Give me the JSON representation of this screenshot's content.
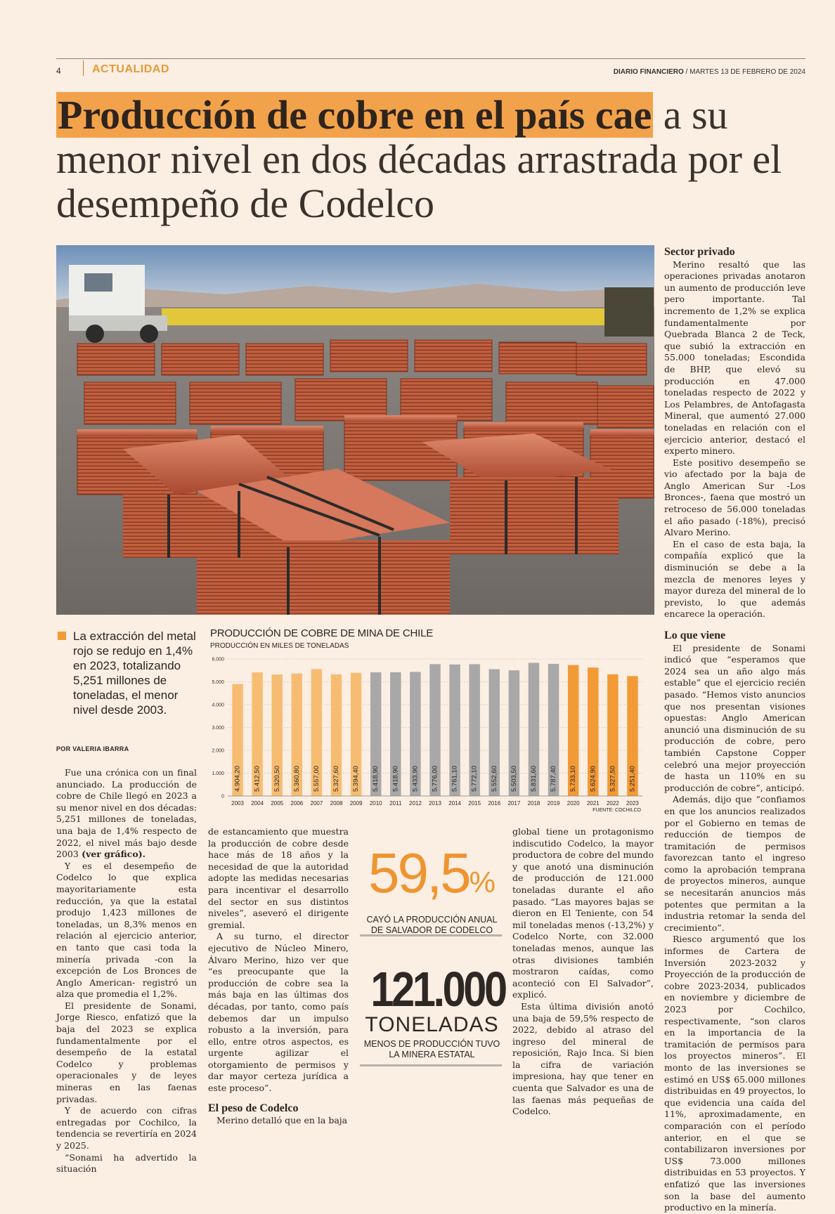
{
  "header": {
    "page_number": "4",
    "section": "ACTUALIDAD",
    "paper": "DIARIO FINANCIERO",
    "date": " / MARTES 13 DE FEBRERO DE 2024"
  },
  "headline": {
    "highlight": "Producción de cobre en el país cae",
    "rest": " a su menor nivel en dos décadas arrastrada por el desempeño de Codelco"
  },
  "lead": "La extracción del metal rojo se redujo en 1,4% en 2023, totalizando 5,251 millones de toneladas, el menor nivel desde 2003.",
  "byline": "POR VALERIA IBARRA",
  "chart_data": {
    "type": "bar",
    "title": "PRODUCCIÓN DE COBRE DE MINA DE CHILE",
    "subtitle": "PRODUCCIÓN EN MILES DE TONELADAS",
    "source": "FUENTE: COCHILCO",
    "categories": [
      "2003",
      "2004",
      "2005",
      "2006",
      "2007",
      "2008",
      "2009",
      "2010",
      "2011",
      "2012",
      "2013",
      "2014",
      "2015",
      "2016",
      "2017",
      "2018",
      "2019",
      "2020",
      "2021",
      "2022",
      "2023"
    ],
    "values": [
      4904.2,
      5412.5,
      5320.5,
      5360.8,
      5557.0,
      5327.6,
      5394.4,
      5418.9,
      5418.9,
      5433.9,
      5776.0,
      5761.1,
      5772.1,
      5552.6,
      5503.5,
      5831.6,
      5787.4,
      5733.1,
      5624.9,
      5327.5,
      5251.4
    ],
    "value_labels": [
      "4.904,20",
      "5.412,50",
      "5.320,50",
      "5.360,80",
      "5.557,00",
      "5.327,60",
      "5.394,40",
      "5.418,90",
      "5.418,90",
      "5.433,90",
      "5.776,00",
      "5.761,10",
      "5.772,10",
      "5.552,60",
      "5.503,50",
      "5.831,60",
      "5.787,40",
      "5.733,10",
      "5.624,90",
      "5.327,50",
      "5.251,40"
    ],
    "bar_colors": [
      "#f6bd72",
      "#f6bd72",
      "#f6bd72",
      "#f6bd72",
      "#f6bd72",
      "#f6bd72",
      "#f6bd72",
      "#a8a8a8",
      "#a8a8a8",
      "#a8a8a8",
      "#a8a8a8",
      "#a8a8a8",
      "#a8a8a8",
      "#a8a8a8",
      "#a8a8a8",
      "#a8a8a8",
      "#a8a8a8",
      "#f29a36",
      "#f29a36",
      "#f29a36",
      "#f29a36"
    ],
    "yticks": [
      "0",
      "1.000",
      "2.000",
      "3.000",
      "4.000",
      "5.000",
      "6.000"
    ],
    "ylim": [
      0,
      6000
    ],
    "grid": true
  },
  "col1": [
    "Fue una crónica con un final anunciado. La producción de cobre de Chile llegó en 2023 a su menor nivel en dos décadas: 5,251 millones de toneladas, una baja de 1,4% respecto de 2022, el nivel más bajo desde 2003",
    " (ver gráfico).",
    "Y es el desempeño de Codelco lo que explica mayoritariamente esta reducción, ya que la estatal produjo 1,423 millones de toneladas, un 8,3% menos en relación al ejercicio anterior, en tanto que casi toda la minería privada -con la excepción de Los Bronces de Anglo American- registró un alza que promedia el 1,2%.",
    "El presidente de Sonami, Jorge Riesco, enfatizó que la baja del 2023 se explica fundamentalmente por el desempeño de la estatal Codelco y problemas operacionales y de leyes mineras en las faenas privadas.",
    "Y de acuerdo con cifras entregadas por Cochilco, la tendencia se revertiría en 2024 y 2025.",
    "“Sonami ha advertido la situación"
  ],
  "col2": [
    "de estancamiento que muestra la producción de cobre desde hace más de 18 años y la necesidad de que la autoridad adopte las medidas necesarias para incentivar el desarrollo del sector en sus distintos niveles”, aseveró el dirigente gremial.",
    "A su turno, el director ejecutivo de Núcleo Minero, Álvaro Merino, hizo ver que “es preocupante que la producción de cobre sea la más baja en las últimas dos décadas, por tanto, como país debemos dar un impulso robusto a la inversión, para ello, entre otros aspectos, es urgente agilizar el otorgamiento de permisos y dar mayor certeza jurídica a este proceso”.",
    "El peso de Codelco",
    "Merino detalló que en la baja"
  ],
  "stat1": {
    "value": "59,5",
    "unit": "%",
    "caption": "CAYÓ LA PRODUCCIÓN ANUAL DE SALVADOR DE CODELCO"
  },
  "stat2": {
    "value": "121.000",
    "unit": "TONELADAS",
    "caption": "MENOS DE PRODUCCIÓN TUVO LA MINERA ESTATAL"
  },
  "col3": [
    "global tiene un protagonismo indiscutido Codelco, la mayor productora de cobre del mundo y que anotó una disminución de producción de 121.000 toneladas durante el año pasado. “Las mayores bajas se dieron en El Teniente, con 54 mil toneladas menos (-13,2%) y Codelco Norte, con 32.000 toneladas menos, aunque las otras divisiones también mostraron caídas, como aconteció con El Salvador”, explicó.",
    "Esta última división anotó una baja de 59,5% respecto de 2022, debido al atraso del ingreso del mineral de reposición, Rajo Inca. Si bien la cifra de variación impresiona, hay que tener en cuenta que Salvador es una de las faenas más pequeñas de Codelco."
  ],
  "col4": {
    "h1": "Sector privado",
    "p1": [
      "Merino resaltó que las operaciones privadas anotaron un aumento de producción leve pero importante. Tal incremento de 1,2% se explica fundamentalmente por Quebrada Blanca 2 de Teck, que subió la extracción en 55.000 toneladas; Escondida de BHP, que elevó su producción en 47.000 toneladas respecto de 2022 y Los Pelambres, de Antofagasta Mineral, que aumentó 27.000 toneladas en relación con el ejercicio anterior, destacó el experto minero.",
      "Este positivo desempeño se vio afectado por la baja de Anglo American Sur -Los Bronces-, faena que mostró un retroceso de 56.000 toneladas el año pasado (-18%), precisó Alvaro Merino.",
      "En el caso de esta baja, la compañía explicó que la disminución se debe a la mezcla de menores leyes y mayor dureza del mineral de lo previsto, lo que además encarece la operación."
    ],
    "h2": "Lo que viene",
    "p2": [
      "El presidente de Sonami indicó que “esperamos que 2024 sea un año algo más estable” que el ejercicio recién pasado. “Hemos visto anuncios que nos presentan visiones opuestas: Anglo American anunció una disminución de su producción de cobre, pero también Capstone Copper celebró una mejor proyección de hasta un 110% en su producción de cobre”, anticipó.",
      "Además, dijo que “confiamos en que los anuncios realizados por el Gobierno en temas de reducción de tiempos de tramitación de permisos favorezcan tanto el ingreso como la aprobación temprana de proyectos mineros, aunque se necesitarán anuncios más potentes que permitan a la industria retomar la senda del crecimiento”.",
      "Riesco argumentó que los informes de Cartera de Inversión 2023-2032 y Proyección de la producción de cobre 2023-2034, publicados en noviembre y diciembre de 2023 por Cochilco, respectivamente, “son claros en la importancia de la tramitación de permisos para los proyectos mineros”. El monto de las inversiones se estimó en US$ 65.000 millones distribuidas en 49 proyectos, lo que evidencia una caída del 11%, aproximadamente, en comparación con el período anterior, en el que se contabilizaron inversiones por US$ 73.000 millones distribuidas en 53 proyectos. Y enfatizó que las inversiones son la base del aumento productivo en la minería."
    ]
  }
}
